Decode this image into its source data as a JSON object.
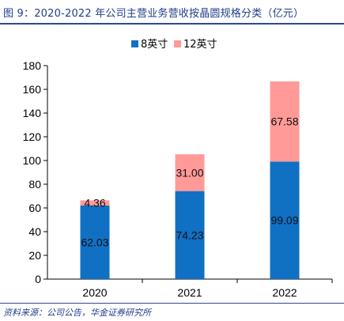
{
  "header": {
    "title": "图 9：2020-2022 年公司主营业务营收按晶圆规格分类（亿元）"
  },
  "footer": {
    "source": "资料来源：公司公告，华金证券研究所"
  },
  "chart_data": {
    "type": "bar",
    "stacked": true,
    "categories": [
      "2020",
      "2021",
      "2022"
    ],
    "series": [
      {
        "name": "8英寸",
        "color": "#1070c4",
        "values": [
          62.03,
          74.23,
          99.09
        ],
        "labels": [
          "62.03",
          "74.23",
          "99.09"
        ]
      },
      {
        "name": "12英寸",
        "color": "#ff9a98",
        "values": [
          4.36,
          31.0,
          67.58
        ],
        "labels": [
          "4.36",
          "31.00",
          "67.58"
        ]
      }
    ],
    "ylim": [
      0,
      180
    ],
    "yticks": [
      "0",
      "20",
      "40",
      "60",
      "80",
      "100",
      "120",
      "140",
      "160",
      "180"
    ],
    "legend_position": "top-center",
    "grid": false
  }
}
